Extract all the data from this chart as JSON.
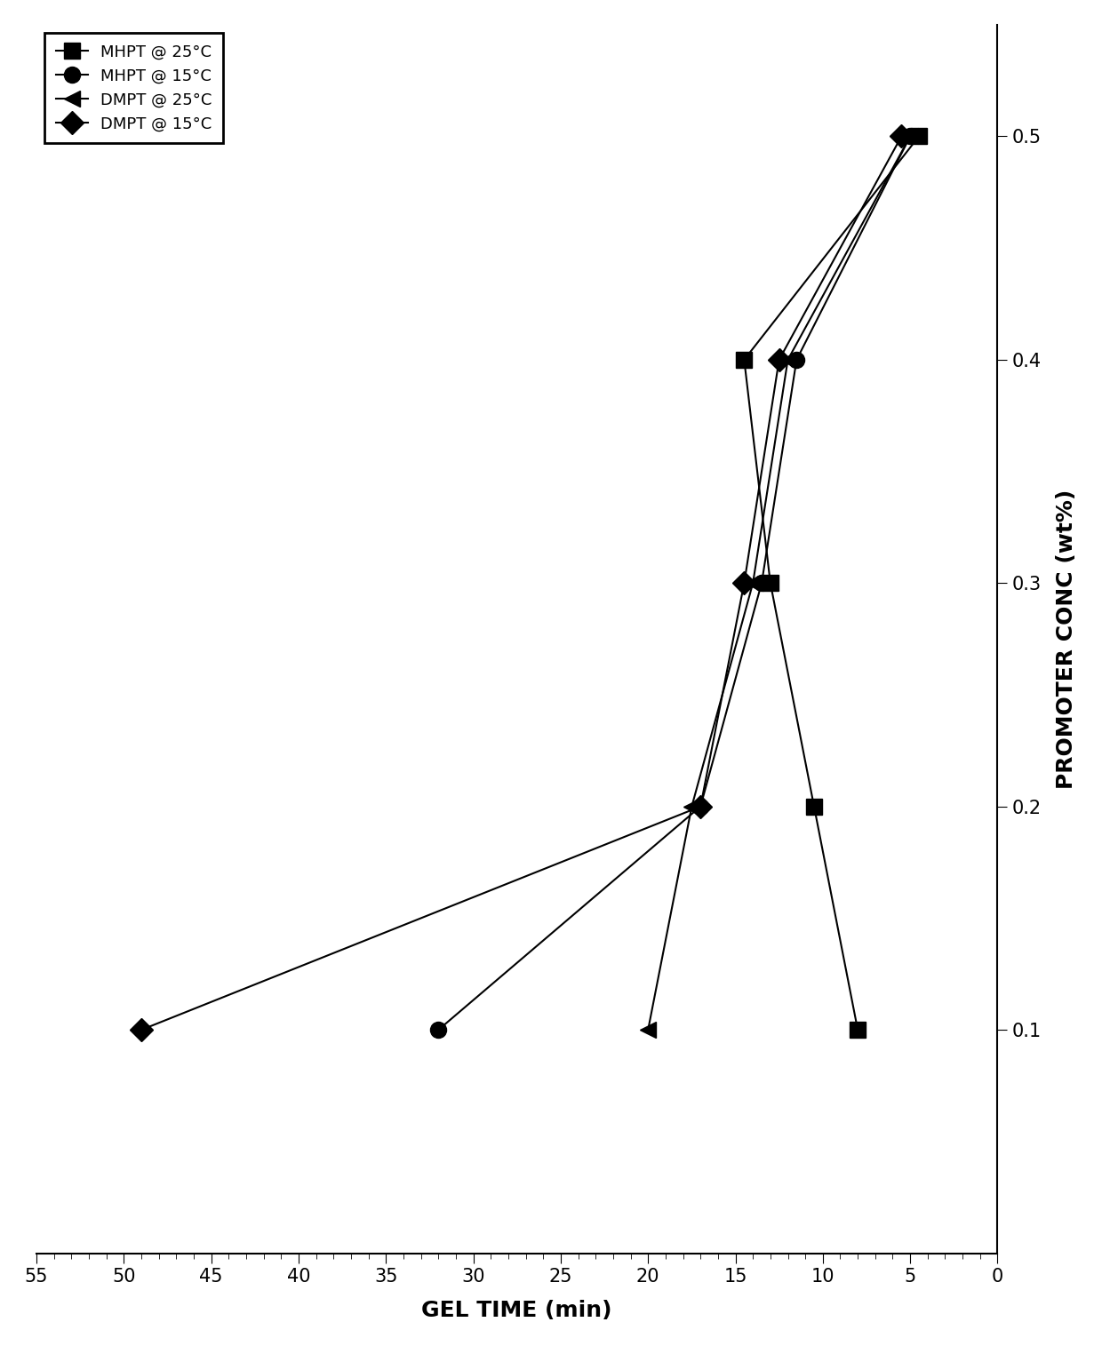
{
  "series": [
    {
      "label": "MHPT @ 25°C",
      "marker": "s",
      "gel_time": [
        8.0,
        10.5,
        13.0,
        14.5,
        4.5
      ],
      "conc": [
        0.1,
        0.2,
        0.3,
        0.4,
        0.5
      ]
    },
    {
      "label": "MHPT @ 15°C",
      "marker": "o",
      "gel_time": [
        32.0,
        17.0,
        13.5,
        11.5,
        5.0
      ],
      "conc": [
        0.1,
        0.2,
        0.3,
        0.4,
        0.5
      ]
    },
    {
      "label": "DMPT @ 25°C",
      "marker": "<",
      "gel_time": [
        20.0,
        17.5,
        14.0,
        12.0,
        5.0
      ],
      "conc": [
        0.1,
        0.2,
        0.3,
        0.4,
        0.5
      ]
    },
    {
      "label": "DMPT @ 15°C",
      "marker": "D",
      "gel_time": [
        49.0,
        17.0,
        14.5,
        12.5,
        5.5
      ],
      "conc": [
        0.1,
        0.2,
        0.3,
        0.4,
        0.5
      ]
    }
  ],
  "xlabel": "GEL TIME (min)",
  "ylabel": "PROMOTER CONC (wt%)",
  "xlim": [
    0,
    55
  ],
  "ylim": [
    0.0,
    0.55
  ],
  "xticks": [
    0,
    5,
    10,
    15,
    20,
    25,
    30,
    35,
    40,
    45,
    50,
    55
  ],
  "yticks": [
    0.1,
    0.2,
    0.3,
    0.4,
    0.5
  ],
  "color": "#000000",
  "background": "#ffffff",
  "marker_size": 13,
  "line_width": 1.5,
  "label_fontsize": 18,
  "tick_fontsize": 15,
  "legend_fontsize": 13
}
